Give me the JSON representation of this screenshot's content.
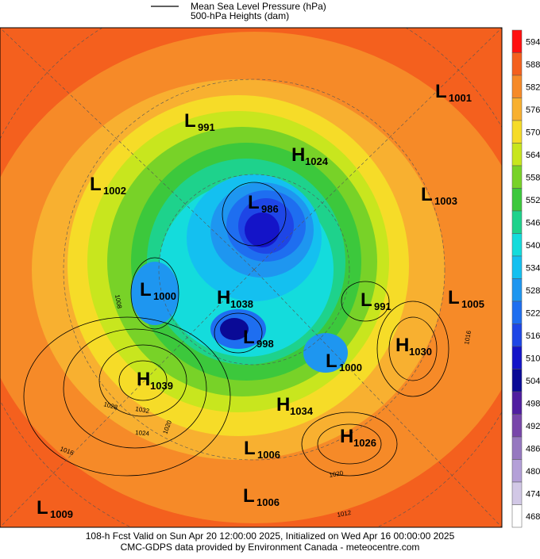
{
  "legend": {
    "lines": [
      "Mean Sea Level Pressure (hPa)",
      "500-hPa Heights (dam)"
    ]
  },
  "colorbar": {
    "levels": [
      {
        "value": 594,
        "color": "#ff1010"
      },
      {
        "value": 588,
        "color": "#f4601e"
      },
      {
        "value": 582,
        "color": "#f68a28"
      },
      {
        "value": 576,
        "color": "#f8b030"
      },
      {
        "value": 570,
        "color": "#f6dc28"
      },
      {
        "value": 564,
        "color": "#c8e61e"
      },
      {
        "value": 558,
        "color": "#78d228"
      },
      {
        "value": 552,
        "color": "#3cc83c"
      },
      {
        "value": 546,
        "color": "#1ed28c"
      },
      {
        "value": 540,
        "color": "#14dcdc"
      },
      {
        "value": 534,
        "color": "#14c0f0"
      },
      {
        "value": 528,
        "color": "#1e96f0"
      },
      {
        "value": 522,
        "color": "#1e6ef0"
      },
      {
        "value": 516,
        "color": "#1e46e6"
      },
      {
        "value": 510,
        "color": "#1414c8"
      },
      {
        "value": 504,
        "color": "#0a0a96"
      },
      {
        "value": 498,
        "color": "#501ea0"
      },
      {
        "value": 492,
        "color": "#7846aa"
      },
      {
        "value": 486,
        "color": "#9678c0"
      },
      {
        "value": 480,
        "color": "#b4a0d8"
      },
      {
        "value": 474,
        "color": "#d2c8e6"
      },
      {
        "value": 468,
        "color": "#ffffff"
      }
    ]
  },
  "systems": [
    {
      "kind": "L",
      "value": 991
    },
    {
      "kind": "H",
      "value": 1024
    },
    {
      "kind": "L",
      "value": 1002
    },
    {
      "kind": "L",
      "value": 986
    },
    {
      "kind": "L",
      "value": 1001
    },
    {
      "kind": "L",
      "value": 1003
    },
    {
      "kind": "L",
      "value": 1000
    },
    {
      "kind": "H",
      "value": 1038
    },
    {
      "kind": "L",
      "value": 991
    },
    {
      "kind": "L",
      "value": 1005
    },
    {
      "kind": "L",
      "value": 998
    },
    {
      "kind": "L",
      "value": 1000
    },
    {
      "kind": "H",
      "value": 1030
    },
    {
      "kind": "H",
      "value": 1039
    },
    {
      "kind": "H",
      "value": 1034
    },
    {
      "kind": "H",
      "value": 1026
    },
    {
      "kind": "L",
      "value": 1006
    },
    {
      "kind": "L",
      "value": 1006
    },
    {
      "kind": "L",
      "value": 1009
    }
  ],
  "contour_labels": [
    1016,
    1028,
    1032,
    1024,
    1016,
    1020,
    1020,
    1012,
    1008
  ],
  "footer": [
    "108-h Fcst Valid on Sun Apr 20 12:00:00 2025, Initialized on Wed Apr 16 00:00:00 2025",
    "CMC-GDPS data provided by Environment Canada - meteocentre.com"
  ]
}
